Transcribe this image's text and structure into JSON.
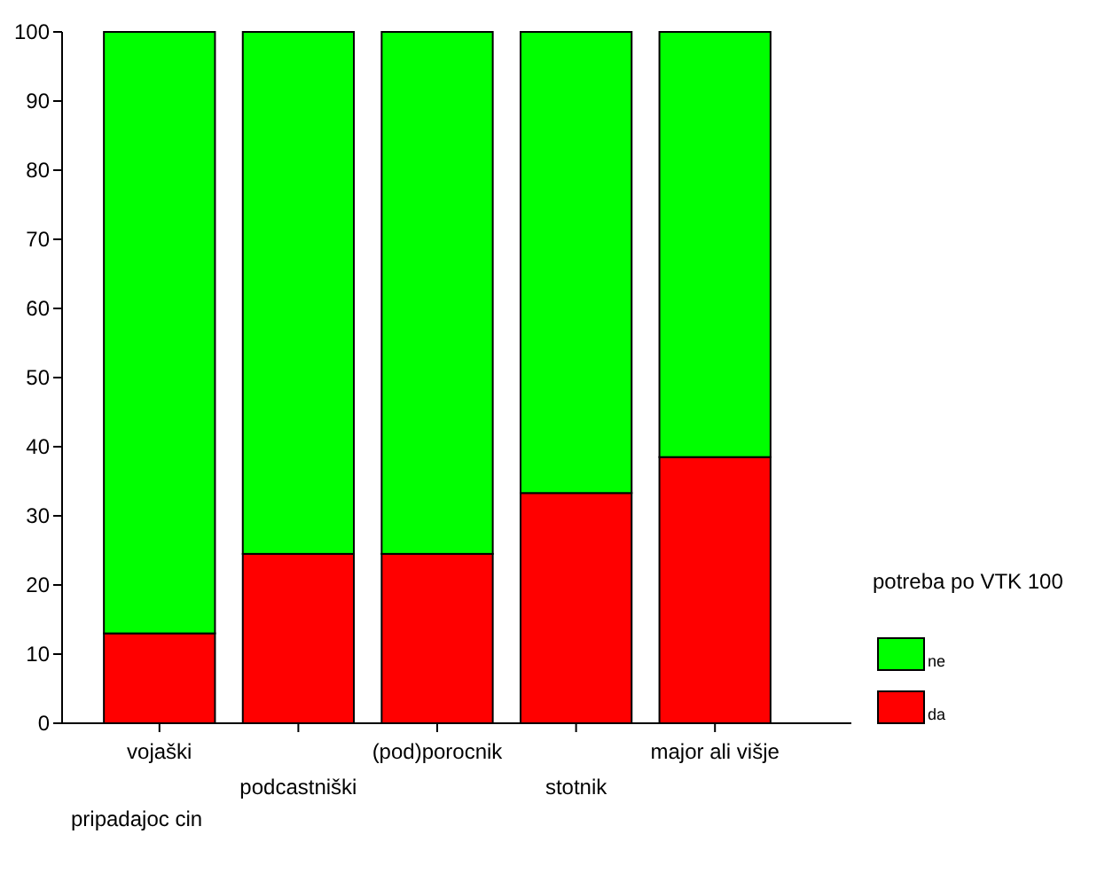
{
  "chart_data": {
    "type": "bar",
    "stacked": true,
    "xlabel": "pripadajoc cin",
    "legend_title": "potreba po VTK 100",
    "legend": "right",
    "categories": [
      "vojaški",
      "podcastniški",
      "(pod)porocnik",
      "stotnik",
      "major ali višje"
    ],
    "series": [
      {
        "name": "da",
        "color": "#ff0000",
        "values": [
          13,
          24.5,
          24.5,
          33.3,
          38.5
        ]
      },
      {
        "name": "ne",
        "color": "#00ff00",
        "values": [
          87,
          75.5,
          75.5,
          66.7,
          61.5
        ]
      }
    ],
    "ylim": [
      0,
      100
    ],
    "yticks": [
      0,
      10,
      20,
      30,
      40,
      50,
      60,
      70,
      80,
      90,
      100
    ]
  }
}
